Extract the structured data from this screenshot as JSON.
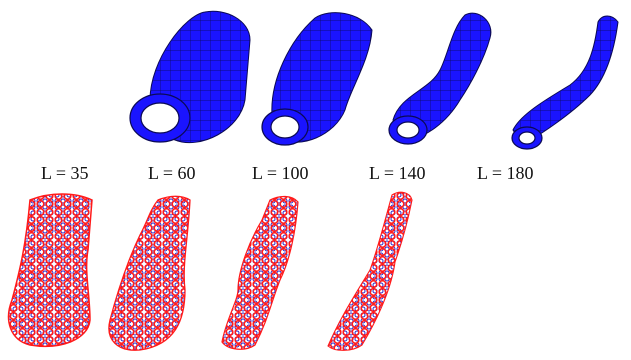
{
  "figure": {
    "labels": [
      "L = 35",
      "L = 60",
      "L = 100",
      "L = 140",
      "L = 180"
    ]
  },
  "colors": {
    "tube_fill": "#1a14ff",
    "tube_mesh": "#0a0a40",
    "cage_red": "#ff1a1a",
    "cage_blue": "#2020c8",
    "background": "#ffffff"
  }
}
